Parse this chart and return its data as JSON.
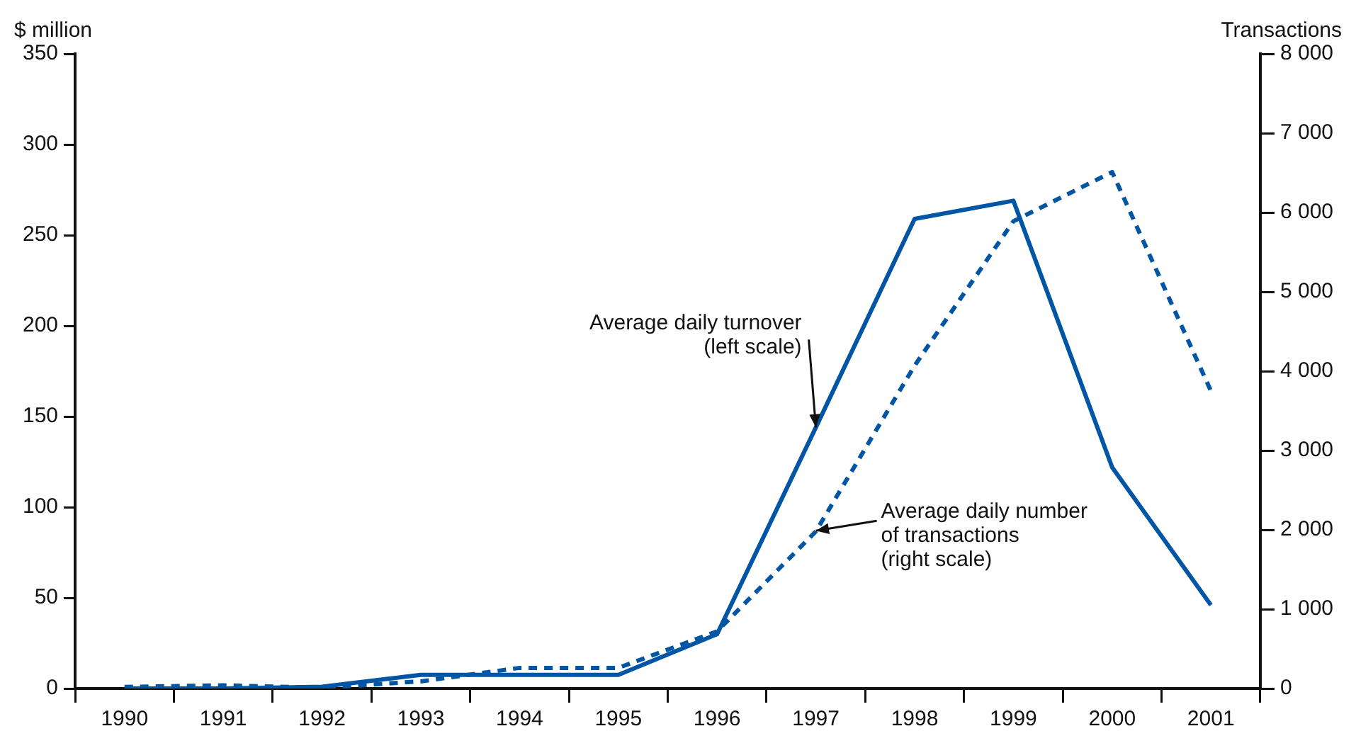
{
  "chart_data": {
    "type": "line",
    "ylabel": "$ million",
    "y2label": "Transactions",
    "categories": [
      "1990",
      "1991",
      "1992",
      "1993",
      "1994",
      "1995",
      "1996",
      "1997",
      "1998",
      "1999",
      "2000",
      "2001"
    ],
    "series": [
      {
        "color": "#0055a4",
        "line_style": "solid",
        "values": [
          0,
          0,
          1,
          7.5,
          7.5,
          7.5,
          30,
          144,
          259,
          269,
          122,
          46
        ]
      },
      {
        "color": "#0055a4",
        "line_style": "dashed",
        "axis": "y2",
        "values": [
          20,
          40,
          10,
          90,
          260,
          260,
          720,
          1980,
          4070,
          5890,
          6510,
          3750
        ]
      }
    ],
    "ylim": [
      0,
      350
    ],
    "yticks": [
      0,
      50,
      100,
      150,
      200,
      250,
      300,
      350
    ],
    "y2lim": [
      0,
      8000
    ],
    "y2ticks": [
      0,
      {
        "value": 1000,
        "label": "1 000"
      },
      {
        "value": 2000,
        "label": "2 000"
      },
      {
        "value": 3000,
        "label": "3 000"
      },
      {
        "value": 4000,
        "label": "4 000"
      },
      {
        "value": 5000,
        "label": "5 000"
      },
      {
        "value": 6000,
        "label": "6 000"
      },
      {
        "value": 7000,
        "label": "7 000"
      },
      {
        "value": 8000,
        "label": "8 000"
      }
    ],
    "annotations": [
      {
        "text": "Average daily turnover\n(left scale)",
        "x": "1997",
        "y": 144
      },
      {
        "text": "Average daily number\nof transactions\n(right scale)",
        "x": "1997",
        "y": 87
      }
    ],
    "grid": false,
    "legend": false,
    "marker": "none"
  }
}
